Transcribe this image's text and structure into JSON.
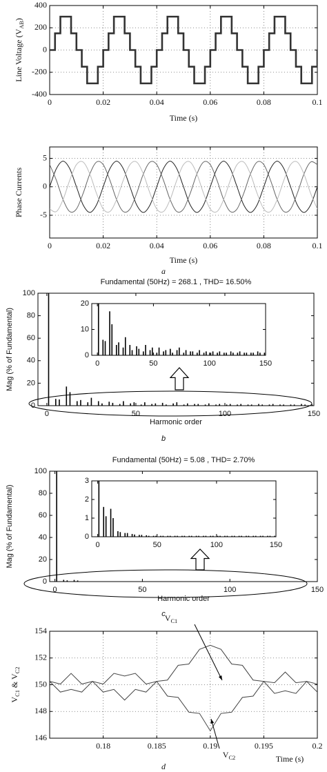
{
  "chart_data": [
    {
      "type": "line",
      "step": true,
      "ylabel": [
        {
          "text": "Line Voltage (V"
        },
        {
          "text": "AB",
          "sub": true
        },
        {
          "text": ")"
        }
      ],
      "xlabel": "Time (s)",
      "x": [
        0,
        0.002,
        0.004,
        0.006,
        0.008,
        0.01,
        0.012,
        0.014,
        0.016,
        0.018,
        0.02,
        0.022,
        0.024,
        0.026,
        0.028,
        0.03,
        0.032,
        0.034,
        0.036,
        0.038,
        0.04,
        0.042,
        0.044,
        0.046,
        0.048,
        0.05,
        0.052,
        0.054,
        0.056,
        0.058,
        0.06,
        0.062,
        0.064,
        0.066,
        0.068,
        0.07,
        0.072,
        0.074,
        0.076,
        0.078,
        0.08,
        0.082,
        0.084,
        0.086,
        0.088,
        0.09,
        0.092,
        0.094,
        0.096,
        0.098,
        0.1
      ],
      "series": [
        {
          "color": "#333333",
          "values": [
            0,
            150,
            300,
            300,
            150,
            0,
            -150,
            -300,
            -300,
            -150,
            0,
            150,
            300,
            300,
            150,
            0,
            -150,
            -300,
            -300,
            -150,
            0,
            150,
            300,
            300,
            150,
            0,
            -150,
            -300,
            -300,
            -150,
            0,
            150,
            300,
            300,
            150,
            0,
            -150,
            -300,
            -300,
            -150,
            0,
            150,
            300,
            300,
            150,
            0,
            -150,
            -300,
            -300,
            -150,
            0
          ]
        }
      ],
      "xlim": [
        0,
        0.1
      ],
      "xticks": [
        0,
        0.02,
        0.04,
        0.06,
        0.08,
        0.1
      ],
      "ylim": [
        -400,
        400
      ],
      "yticks": [
        -400,
        -200,
        0,
        200,
        400
      ],
      "grid": true
    },
    {
      "type": "line",
      "smooth": true,
      "ylabel": [
        {
          "text": "Phase Currents"
        }
      ],
      "xlabel": "Time (s)",
      "caption": "a",
      "x": [
        0,
        0.0025,
        0.005,
        0.0075,
        0.01,
        0.0125,
        0.015,
        0.0175,
        0.02,
        0.0225,
        0.025,
        0.0275,
        0.03,
        0.0325,
        0.035,
        0.0375,
        0.04,
        0.0425,
        0.045,
        0.0475,
        0.05,
        0.0525,
        0.055,
        0.0575,
        0.06,
        0.0625,
        0.065,
        0.0675,
        0.07,
        0.0725,
        0.075,
        0.0775,
        0.08,
        0.0825,
        0.085,
        0.0875,
        0.09,
        0.0925,
        0.095,
        0.0975,
        0.1
      ],
      "series": [
        {
          "color": "#222222",
          "values": [
            0,
            3.18,
            4.5,
            3.18,
            0,
            -3.18,
            -4.5,
            -3.18,
            0,
            3.18,
            4.5,
            3.18,
            0,
            -3.18,
            -4.5,
            -3.18,
            0,
            3.18,
            4.5,
            3.18,
            0,
            -3.18,
            -4.5,
            -3.18,
            0,
            3.18,
            4.5,
            3.18,
            0,
            -3.18,
            -4.5,
            -3.18,
            0,
            3.18,
            4.5,
            3.18,
            0,
            -3.18,
            -4.5,
            -3.18,
            0
          ]
        },
        {
          "color": "#666666",
          "values": [
            3.9,
            1.16,
            -2.25,
            -4.35,
            -3.9,
            -1.16,
            2.25,
            4.35,
            3.9,
            1.16,
            -2.25,
            -4.35,
            -3.9,
            -1.16,
            2.25,
            4.35,
            3.9,
            1.16,
            -2.25,
            -4.35,
            -3.9,
            -1.16,
            2.25,
            4.35,
            3.9,
            1.16,
            -2.25,
            -4.35,
            -3.9,
            -1.16,
            2.25,
            4.35,
            3.9,
            1.16,
            -2.25,
            -4.35,
            -3.9,
            -1.16,
            2.25,
            4.35,
            3.9
          ]
        },
        {
          "color": "#bbbbbb",
          "values": [
            -3.9,
            -4.35,
            -2.25,
            1.16,
            3.9,
            4.35,
            2.25,
            -1.16,
            -3.9,
            -4.35,
            -2.25,
            1.16,
            3.9,
            4.35,
            2.25,
            -1.16,
            -3.9,
            -4.35,
            -2.25,
            1.16,
            3.9,
            4.35,
            2.25,
            -1.16,
            -3.9,
            -4.35,
            -2.25,
            1.16,
            3.9,
            4.35,
            2.25,
            -1.16,
            -3.9,
            -4.35,
            -2.25,
            1.16,
            3.9,
            4.35,
            2.25,
            -1.16,
            -3.9
          ]
        }
      ],
      "xlim": [
        0,
        0.1
      ],
      "xticks": [
        0,
        0.02,
        0.04,
        0.06,
        0.08,
        0.1
      ],
      "ylim": [
        -9,
        7
      ],
      "yticks": [
        -5,
        0,
        5
      ],
      "grid": true
    },
    {
      "type": "bar",
      "title": "Fundamental (50Hz) = 268.1 , THD= 16.50%",
      "ylabel": [
        {
          "text": "Mag (% of Fundamental)"
        }
      ],
      "xlabel": "Harmonic order",
      "caption": "b",
      "color": "#000000",
      "x": [
        1,
        5,
        7,
        11,
        13,
        17,
        19,
        23,
        25,
        29,
        31,
        35,
        37,
        41,
        43,
        47,
        49,
        53,
        55,
        59,
        61,
        65,
        67,
        71,
        73,
        77,
        79,
        83,
        85,
        89,
        91,
        95,
        97,
        101,
        103,
        107,
        109,
        113,
        115,
        119,
        121,
        125,
        127,
        131,
        133,
        137,
        139,
        143,
        145,
        149
      ],
      "values": [
        100,
        6,
        5.5,
        17,
        12,
        4,
        5,
        3,
        7,
        4,
        2,
        3.5,
        2.5,
        1.5,
        4,
        2,
        3,
        1,
        3,
        1.5,
        2,
        2.5,
        1,
        2,
        3,
        1,
        2,
        1.5,
        1.5,
        1,
        2,
        1,
        1.5,
        1,
        1.5,
        1,
        1.5,
        1,
        1,
        1.5,
        1,
        1,
        1.5,
        1,
        1,
        1,
        1,
        1.5,
        1,
        1
      ],
      "xlim": [
        -5,
        150
      ],
      "xticks": [
        0,
        50,
        100,
        150
      ],
      "ylim": [
        0,
        100
      ],
      "yticks": [
        0,
        20,
        40,
        60,
        80,
        100
      ],
      "grid": false,
      "inset": {
        "xlim": [
          -5,
          150
        ],
        "xticks": [
          0,
          50,
          100,
          150
        ],
        "ylim": [
          0,
          20
        ],
        "yticks": [
          0,
          10,
          20
        ]
      }
    },
    {
      "type": "bar",
      "title": "Fundamental (50Hz) = 5.08 , THD= 2.70%",
      "ylabel": [
        {
          "text": "Mag (% of Fundamental)"
        }
      ],
      "xlabel": "Harmonic order",
      "caption": "c",
      "color": "#000000",
      "x": [
        1,
        5,
        7,
        11,
        13,
        17,
        19,
        23,
        25,
        29,
        31,
        35,
        37,
        41,
        43,
        47,
        49,
        53,
        55,
        59,
        61,
        65,
        67,
        71,
        73,
        77,
        79,
        83,
        85,
        89,
        91,
        95,
        97,
        101,
        103,
        107,
        109,
        113,
        115,
        119,
        121,
        125,
        127,
        131,
        133,
        137,
        139,
        143,
        145,
        149
      ],
      "values": [
        100,
        1.6,
        1.1,
        1.5,
        1.0,
        0.3,
        0.25,
        0.2,
        0.2,
        0.15,
        0.12,
        0.1,
        0.1,
        0.08,
        0.05,
        0.05,
        0.05,
        0.05,
        0.05,
        0.05,
        0.05,
        0.05,
        0.05,
        0.05,
        0.05,
        0.05,
        0.05,
        0.05,
        0.05,
        0.05,
        0.05,
        0.05,
        0.05,
        0.05,
        0.05,
        0.05,
        0.05,
        0.05,
        0.05,
        0.05,
        0.05,
        0.05,
        0.05,
        0.05,
        0.05,
        0.05,
        0.05,
        0.05,
        0.05,
        0.05
      ],
      "xlim": [
        -3,
        150
      ],
      "xticks": [
        0,
        50,
        100,
        150
      ],
      "ylim": [
        0,
        100
      ],
      "yticks": [
        0,
        20,
        40,
        60,
        80,
        100
      ],
      "grid": false,
      "inset": {
        "xlim": [
          -5,
          150
        ],
        "xticks": [
          0,
          50,
          100,
          150
        ],
        "ylim": [
          0,
          3
        ],
        "yticks": [
          0,
          1,
          2,
          3
        ]
      }
    },
    {
      "type": "line",
      "ylabel": [
        {
          "text": "V"
        },
        {
          "text": "C1",
          "sub": true
        },
        {
          "text": " & V"
        },
        {
          "text": "C2",
          "sub": true
        }
      ],
      "xlabel": "Time (s)",
      "caption": "d",
      "annotations": [
        [
          {
            "text": "V"
          },
          {
            "text": "C1",
            "sub": true
          }
        ],
        [
          {
            "text": "V"
          },
          {
            "text": "C2",
            "sub": true
          }
        ]
      ],
      "x": [
        0.175,
        0.176,
        0.177,
        0.178,
        0.179,
        0.18,
        0.181,
        0.182,
        0.183,
        0.184,
        0.185,
        0.186,
        0.187,
        0.188,
        0.189,
        0.19,
        0.191,
        0.192,
        0.193,
        0.194,
        0.195,
        0.196,
        0.197,
        0.198,
        0.199,
        0.2
      ],
      "series": [
        {
          "color": "#444444",
          "values": [
            150.25,
            150.05,
            150.85,
            150.05,
            150.25,
            149.45,
            149.65,
            148.85,
            149.65,
            149.45,
            150.25,
            150.35,
            151.45,
            151.55,
            152.65,
            152.95,
            152.65,
            151.55,
            151.45,
            150.35,
            150.25,
            149.35,
            149.55,
            149.35,
            150.25,
            150.05
          ]
        },
        {
          "color": "#444444",
          "values": [
            150.25,
            149.45,
            149.65,
            149.45,
            150.25,
            150.05,
            150.85,
            150.65,
            150.85,
            150.05,
            150.25,
            149.15,
            149.05,
            147.95,
            147.85,
            146.55,
            147.85,
            147.95,
            149.05,
            149.15,
            150.25,
            150.15,
            150.95,
            150.15,
            150.25,
            149.45
          ]
        }
      ],
      "xlim": [
        0.175,
        0.2
      ],
      "xticks": [
        0.18,
        0.185,
        0.19,
        0.195,
        0.2
      ],
      "ylim": [
        146,
        154
      ],
      "yticks": [
        146,
        148,
        150,
        152,
        154
      ],
      "grid": true
    }
  ]
}
